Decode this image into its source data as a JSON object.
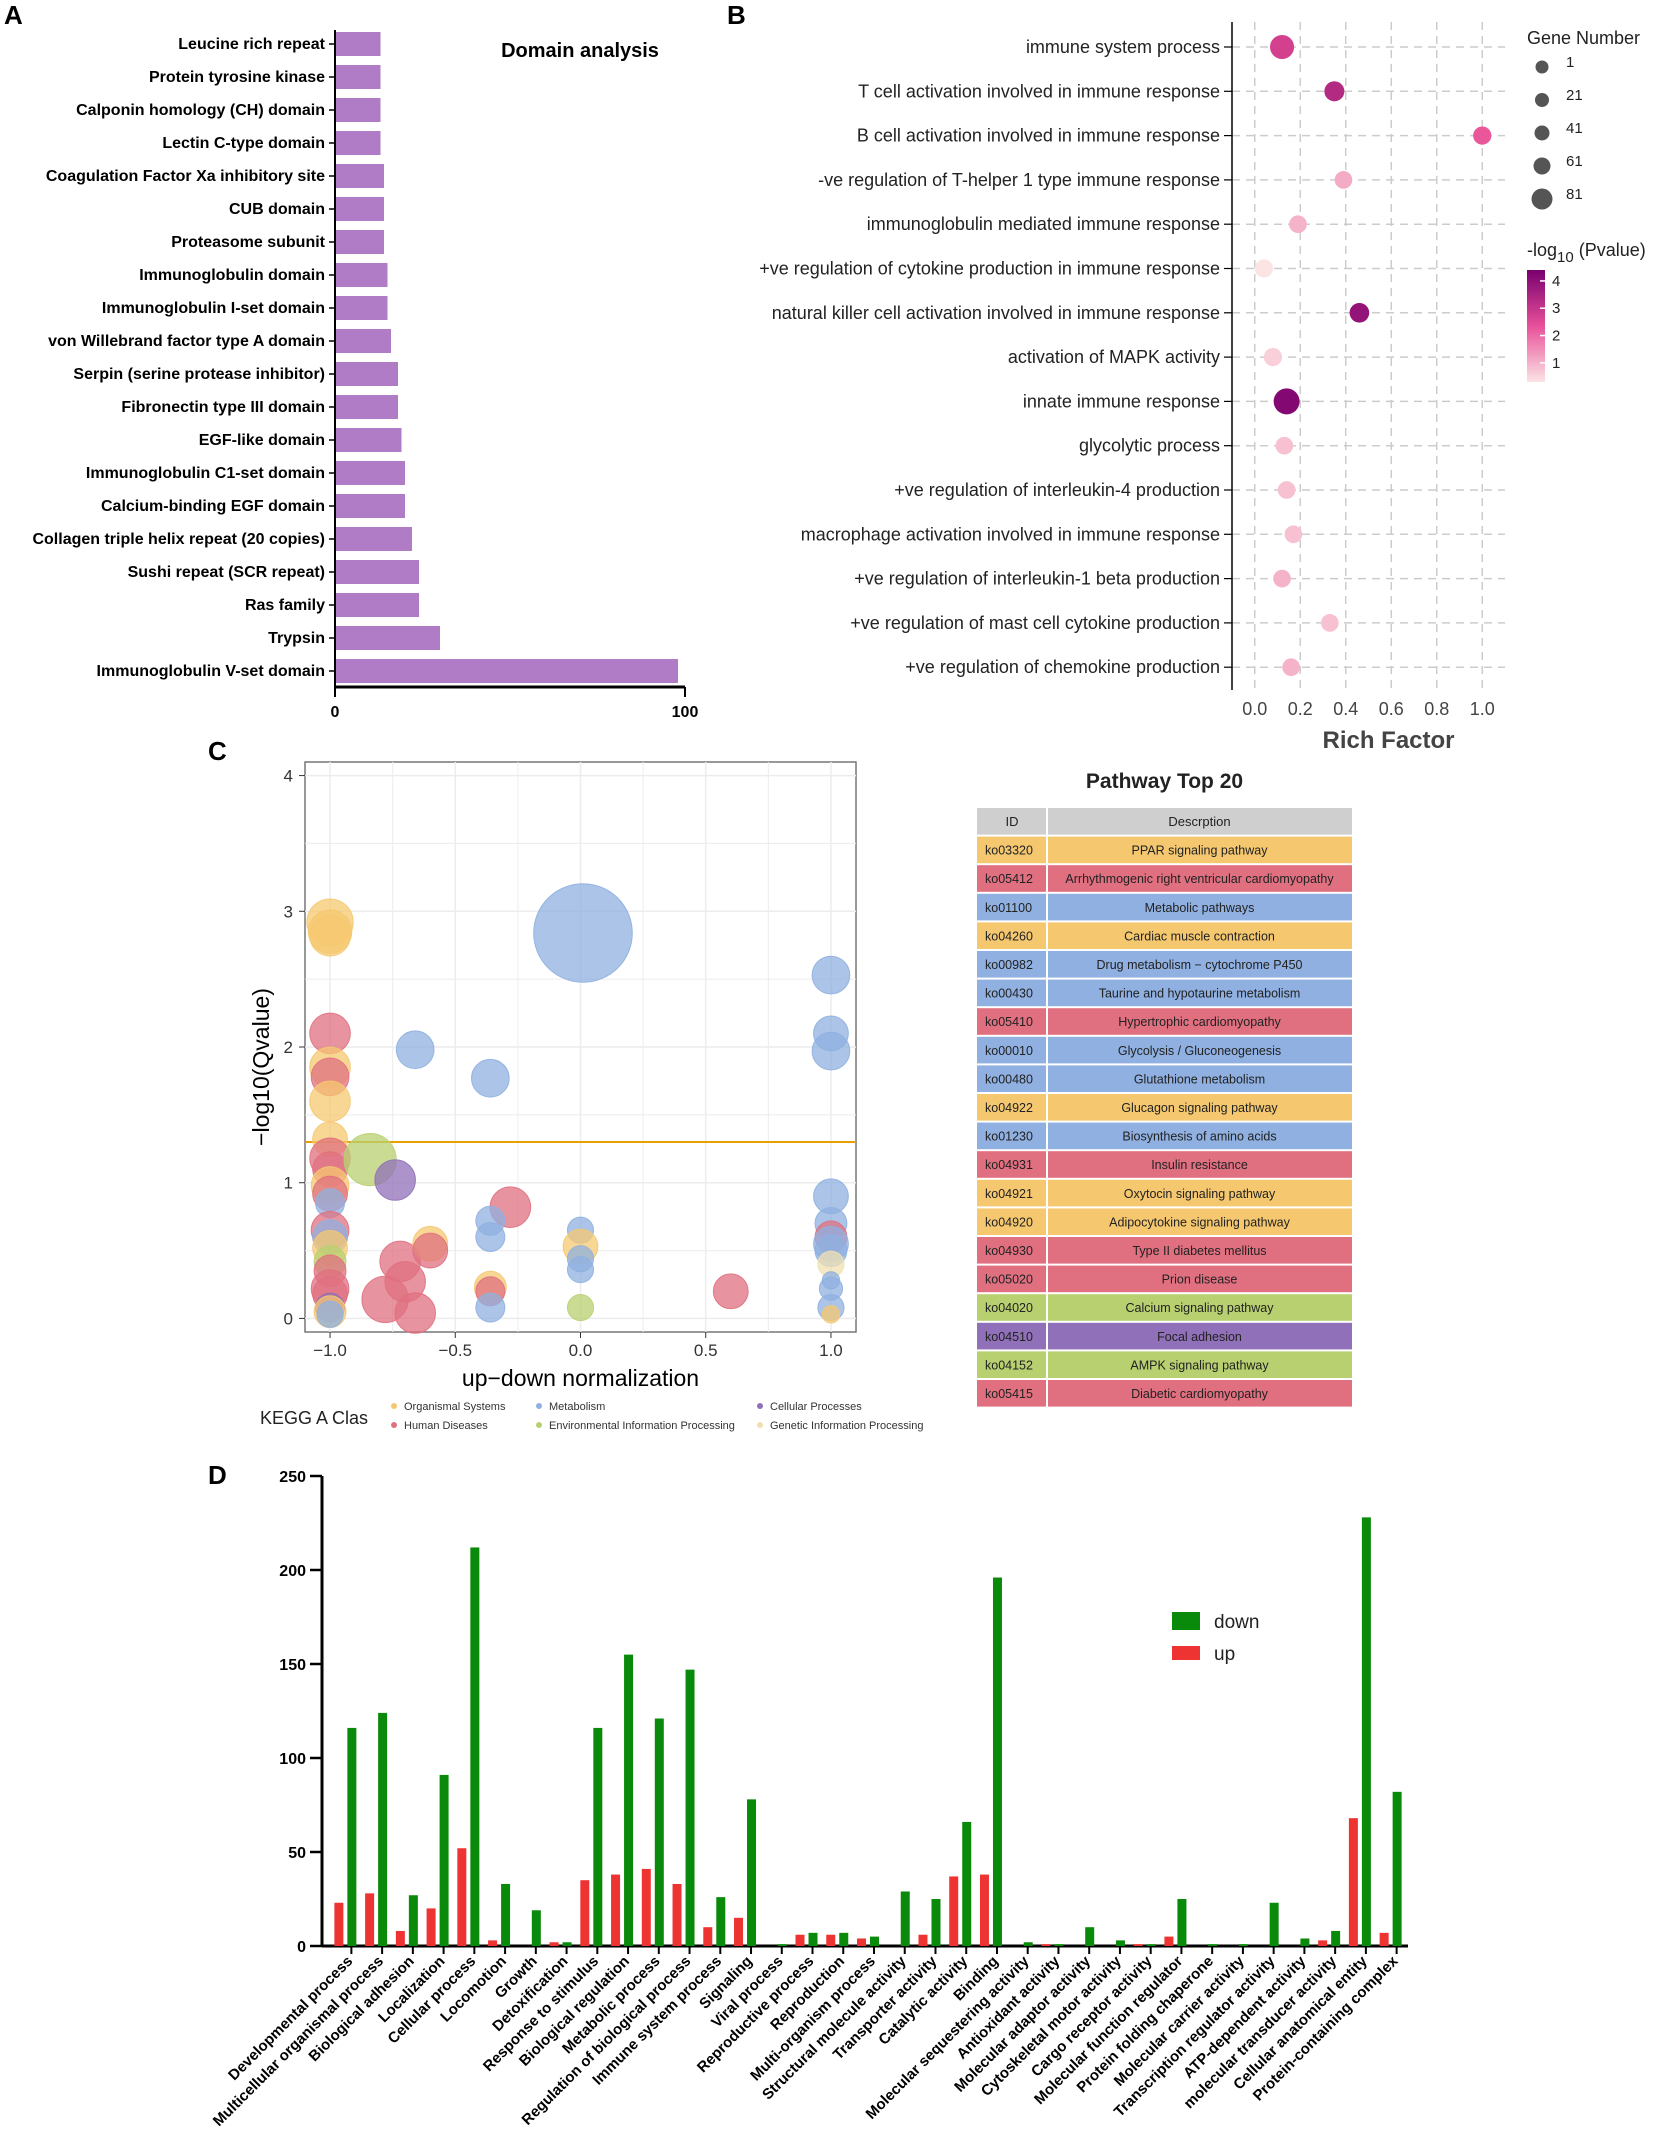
{
  "panels": {
    "a": "A",
    "b": "B",
    "c": "C",
    "d": "D"
  },
  "colors": {
    "domain_bar": "#b07cc6",
    "organismal": "#f5c870",
    "human_diseases": "#e07080",
    "metabolism": "#8fb0e0",
    "environmental": "#b8d070",
    "cellular": "#9070b8",
    "genetic": "#f0e0b0",
    "threshold": "#e8a000",
    "down": "#0a8a0a",
    "up": "#ee3333"
  },
  "chart_data": [
    {
      "id": "domain",
      "type": "bar",
      "orientation": "horizontal",
      "title": "Domain analysis",
      "xlim": [
        0,
        100
      ],
      "xticks": [
        "0",
        "100"
      ],
      "categories": [
        "Leucine rich repeat",
        "Protein tyrosine kinase",
        "Calponin homology (CH) domain",
        "Lectin C-type domain",
        "Coagulation Factor Xa inhibitory site",
        "CUB domain",
        "Proteasome subunit",
        "Immunoglobulin domain",
        "Immunoglobulin I-set domain",
        "von Willebrand factor type A domain",
        "Serpin (serine protease inhibitor)",
        "Fibronectin type III domain",
        "EGF-like domain",
        "Immunoglobulin C1-set domain",
        "Calcium-binding EGF domain",
        "Collagen triple helix repeat (20 copies)",
        "Sushi repeat (SCR repeat)",
        "Ras family",
        "Trypsin",
        "Immunoglobulin V-set domain"
      ],
      "values": [
        13,
        13,
        13,
        13,
        14,
        14,
        14,
        15,
        15,
        16,
        18,
        18,
        19,
        20,
        20,
        22,
        24,
        24,
        30,
        98
      ]
    },
    {
      "id": "enrichment",
      "type": "scatter",
      "xlabel": "Rich Factor",
      "xlim": [
        -0.1,
        1.1
      ],
      "xticks": [
        "0.0",
        "0.2",
        "0.4",
        "0.6",
        "0.8",
        "1.0"
      ],
      "categories": [
        "immune system process",
        "T cell activation involved in immune response",
        "B cell activation involved in immune response",
        "-ve regulation of T-helper 1 type immune response",
        "immunoglobulin mediated immune response",
        "+ve regulation of cytokine production in immune response",
        "natural killer cell activation involved in immune response",
        "activation of MAPK activity",
        "innate immune response",
        "glycolytic process",
        "+ve regulation of interleukin-4 production",
        "macrophage activation involved in immune response",
        "+ve regulation of interleukin-1 beta production",
        "+ve regulation of mast cell cytokine production",
        "+ve regulation of chemokine production"
      ],
      "rich_factor": [
        0.12,
        0.35,
        1.0,
        0.39,
        0.19,
        0.04,
        0.46,
        0.08,
        0.14,
        0.13,
        0.14,
        0.17,
        0.12,
        0.33,
        0.16
      ],
      "gene_number": [
        45,
        20,
        12,
        10,
        10,
        12,
        18,
        12,
        60,
        10,
        10,
        10,
        10,
        10,
        10
      ],
      "neg_log10_p": [
        3.0,
        3.6,
        2.5,
        1.3,
        1.2,
        0.5,
        4.2,
        0.8,
        4.5,
        1.0,
        1.0,
        1.0,
        1.2,
        1.0,
        1.2
      ],
      "size_legend": {
        "title": "Gene Number",
        "labels": [
          "1",
          "21",
          "41",
          "61",
          "81"
        ],
        "values": [
          1,
          21,
          41,
          61,
          81
        ]
      },
      "color_legend": {
        "title_main": "-log",
        "title_sub": "10",
        "title_end": " (Pvalue)",
        "labels": [
          "4",
          "3",
          "2",
          "1"
        ],
        "values": [
          4,
          3,
          2,
          1
        ]
      }
    },
    {
      "id": "kegg_bubble",
      "type": "scatter",
      "xlabel": "up−down normalization",
      "ylabel": "−log10(Qvalue)",
      "xlim": [
        -1.1,
        1.1
      ],
      "ylim": [
        -0.1,
        4.1
      ],
      "xticks": [
        -1.0,
        -0.5,
        0.0,
        0.5,
        1.0
      ],
      "xtick_labels": [
        "−1.0",
        "−0.5",
        "0.0",
        "0.5",
        "1.0"
      ],
      "yticks": [
        0,
        1,
        2,
        3,
        4
      ],
      "ytick_labels": [
        "0",
        "1",
        "2",
        "3",
        "4"
      ],
      "threshold": 1.3,
      "points": [
        {
          "x": -1.0,
          "y": 2.92,
          "s": 16,
          "c": "organismal"
        },
        {
          "x": -1.0,
          "y": 2.85,
          "s": 15,
          "c": "organismal"
        },
        {
          "x": -1.0,
          "y": 2.82,
          "s": 14,
          "c": "organismal"
        },
        {
          "x": -1.0,
          "y": 2.1,
          "s": 14,
          "c": "human_diseases"
        },
        {
          "x": -1.0,
          "y": 1.85,
          "s": 14,
          "c": "organismal"
        },
        {
          "x": -1.0,
          "y": 1.78,
          "s": 13,
          "c": "human_diseases"
        },
        {
          "x": -1.0,
          "y": 1.6,
          "s": 14,
          "c": "organismal"
        },
        {
          "x": -1.0,
          "y": 1.32,
          "s": 12,
          "c": "organismal"
        },
        {
          "x": -1.0,
          "y": 1.18,
          "s": 14,
          "c": "human_diseases"
        },
        {
          "x": -1.0,
          "y": 1.1,
          "s": 12,
          "c": "human_diseases"
        },
        {
          "x": -1.0,
          "y": 0.98,
          "s": 13,
          "c": "organismal"
        },
        {
          "x": -1.0,
          "y": 0.92,
          "s": 12,
          "c": "human_diseases"
        },
        {
          "x": -1.0,
          "y": 0.85,
          "s": 10,
          "c": "metabolism"
        },
        {
          "x": -1.0,
          "y": 0.65,
          "s": 13,
          "c": "human_diseases"
        },
        {
          "x": -1.0,
          "y": 0.6,
          "s": 12,
          "c": "metabolism"
        },
        {
          "x": -1.0,
          "y": 0.52,
          "s": 12,
          "c": "organismal"
        },
        {
          "x": -1.0,
          "y": 0.42,
          "s": 11,
          "c": "environmental"
        },
        {
          "x": -1.0,
          "y": 0.35,
          "s": 11,
          "c": "human_diseases"
        },
        {
          "x": -1.0,
          "y": 0.22,
          "s": 13,
          "c": "human_diseases"
        },
        {
          "x": -1.0,
          "y": 0.18,
          "s": 12,
          "c": "human_diseases"
        },
        {
          "x": -1.0,
          "y": 0.08,
          "s": 10,
          "c": "cellular"
        },
        {
          "x": -1.0,
          "y": 0.05,
          "s": 11,
          "c": "organismal"
        },
        {
          "x": -1.0,
          "y": 0.03,
          "s": 9,
          "c": "metabolism"
        },
        {
          "x": -0.84,
          "y": 1.17,
          "s": 18,
          "c": "environmental"
        },
        {
          "x": -0.74,
          "y": 1.02,
          "s": 14,
          "c": "cellular"
        },
        {
          "x": -0.66,
          "y": 1.98,
          "s": 13,
          "c": "metabolism"
        },
        {
          "x": -0.36,
          "y": 1.77,
          "s": 13,
          "c": "metabolism"
        },
        {
          "x": -0.28,
          "y": 0.82,
          "s": 14,
          "c": "human_diseases"
        },
        {
          "x": -0.72,
          "y": 0.42,
          "s": 14,
          "c": "human_diseases"
        },
        {
          "x": -0.7,
          "y": 0.27,
          "s": 14,
          "c": "human_diseases"
        },
        {
          "x": -0.78,
          "y": 0.14,
          "s": 16,
          "c": "human_diseases"
        },
        {
          "x": -0.66,
          "y": 0.04,
          "s": 14,
          "c": "human_diseases"
        },
        {
          "x": -0.6,
          "y": 0.55,
          "s": 12,
          "c": "organismal"
        },
        {
          "x": -0.6,
          "y": 0.5,
          "s": 12,
          "c": "human_diseases"
        },
        {
          "x": -0.36,
          "y": 0.72,
          "s": 10,
          "c": "metabolism"
        },
        {
          "x": -0.36,
          "y": 0.6,
          "s": 10,
          "c": "metabolism"
        },
        {
          "x": -0.36,
          "y": 0.23,
          "s": 11,
          "c": "organismal"
        },
        {
          "x": -0.36,
          "y": 0.2,
          "s": 10,
          "c": "human_diseases"
        },
        {
          "x": -0.36,
          "y": 0.08,
          "s": 10,
          "c": "metabolism"
        },
        {
          "x": 0.01,
          "y": 2.84,
          "s": 34,
          "c": "metabolism"
        },
        {
          "x": 0.0,
          "y": 0.65,
          "s": 9,
          "c": "metabolism"
        },
        {
          "x": 0.0,
          "y": 0.53,
          "s": 12,
          "c": "organismal"
        },
        {
          "x": 0.0,
          "y": 0.44,
          "s": 9,
          "c": "metabolism"
        },
        {
          "x": 0.0,
          "y": 0.36,
          "s": 9,
          "c": "metabolism"
        },
        {
          "x": 0.0,
          "y": 0.08,
          "s": 9,
          "c": "environmental"
        },
        {
          "x": 0.6,
          "y": 0.2,
          "s": 12,
          "c": "human_diseases"
        },
        {
          "x": 1.0,
          "y": 2.53,
          "s": 13,
          "c": "metabolism"
        },
        {
          "x": 1.0,
          "y": 2.1,
          "s": 12,
          "c": "metabolism"
        },
        {
          "x": 1.0,
          "y": 1.97,
          "s": 13,
          "c": "metabolism"
        },
        {
          "x": 1.0,
          "y": 0.9,
          "s": 12,
          "c": "metabolism"
        },
        {
          "x": 1.0,
          "y": 0.7,
          "s": 11,
          "c": "metabolism"
        },
        {
          "x": 1.0,
          "y": 0.6,
          "s": 11,
          "c": "human_diseases"
        },
        {
          "x": 1.0,
          "y": 0.55,
          "s": 12,
          "c": "metabolism"
        },
        {
          "x": 1.0,
          "y": 0.5,
          "s": 11,
          "c": "metabolism"
        },
        {
          "x": 1.0,
          "y": 0.4,
          "s": 9,
          "c": "genetic"
        },
        {
          "x": 1.0,
          "y": 0.28,
          "s": 6,
          "c": "metabolism"
        },
        {
          "x": 1.0,
          "y": 0.22,
          "s": 8,
          "c": "metabolism"
        },
        {
          "x": 1.0,
          "y": 0.08,
          "s": 9,
          "c": "metabolism"
        },
        {
          "x": 1.0,
          "y": 0.03,
          "s": 6,
          "c": "organismal"
        }
      ],
      "legend": {
        "title": "KEGG A Clas",
        "entries": [
          {
            "label": "Organismal Systems",
            "c": "organismal"
          },
          {
            "label": "Metabolism",
            "c": "metabolism"
          },
          {
            "label": "Cellular Processes",
            "c": "cellular"
          },
          {
            "label": "Human Diseases",
            "c": "human_diseases"
          },
          {
            "label": "Environmental Information Processing",
            "c": "environmental"
          },
          {
            "label": "Genetic Information Processing",
            "c": "genetic"
          }
        ]
      }
    },
    {
      "id": "pathway_table",
      "type": "table",
      "title": "Pathway Top 20",
      "columns": [
        "ID",
        "Descrption"
      ],
      "rows": [
        {
          "id": "ko03320",
          "desc": "PPAR signaling pathway",
          "c": "organismal"
        },
        {
          "id": "ko05412",
          "desc": "Arrhythmogenic right ventricular cardiomyopathy",
          "c": "human_diseases"
        },
        {
          "id": "ko01100",
          "desc": "Metabolic pathways",
          "c": "metabolism"
        },
        {
          "id": "ko04260",
          "desc": "Cardiac muscle contraction",
          "c": "organismal"
        },
        {
          "id": "ko00982",
          "desc": "Drug metabolism − cytochrome P450",
          "c": "metabolism"
        },
        {
          "id": "ko00430",
          "desc": "Taurine and hypotaurine metabolism",
          "c": "metabolism"
        },
        {
          "id": "ko05410",
          "desc": "Hypertrophic cardiomyopathy",
          "c": "human_diseases"
        },
        {
          "id": "ko00010",
          "desc": "Glycolysis / Gluconeogenesis",
          "c": "metabolism"
        },
        {
          "id": "ko00480",
          "desc": "Glutathione metabolism",
          "c": "metabolism"
        },
        {
          "id": "ko04922",
          "desc": "Glucagon signaling pathway",
          "c": "organismal"
        },
        {
          "id": "ko01230",
          "desc": "Biosynthesis of amino acids",
          "c": "metabolism"
        },
        {
          "id": "ko04931",
          "desc": "Insulin resistance",
          "c": "human_diseases"
        },
        {
          "id": "ko04921",
          "desc": "Oxytocin signaling pathway",
          "c": "organismal"
        },
        {
          "id": "ko04920",
          "desc": "Adipocytokine signaling pathway",
          "c": "organismal"
        },
        {
          "id": "ko04930",
          "desc": "Type II diabetes mellitus",
          "c": "human_diseases"
        },
        {
          "id": "ko05020",
          "desc": "Prion disease",
          "c": "human_diseases"
        },
        {
          "id": "ko04020",
          "desc": "Calcium signaling pathway",
          "c": "environmental"
        },
        {
          "id": "ko04510",
          "desc": "Focal adhesion",
          "c": "cellular"
        },
        {
          "id": "ko04152",
          "desc": "AMPK signaling pathway",
          "c": "environmental"
        },
        {
          "id": "ko05415",
          "desc": "Diabetic cardiomyopathy",
          "c": "human_diseases"
        }
      ]
    },
    {
      "id": "go_bar",
      "type": "bar",
      "ylim": [
        0,
        250
      ],
      "yticks": [
        "0",
        "50",
        "100",
        "150",
        "200",
        "250"
      ],
      "categories": [
        "Developmental process",
        "Multicellular organismal process",
        "Biological adhesion",
        "Localization",
        "Cellular process",
        "Locomotion",
        "Growth",
        "Detoxification",
        "Response to stimulus",
        "Biological regulation",
        "Metabolic process",
        "Regulation of biological process",
        "Immune system process",
        "Signaling",
        "Viral process",
        "Reproductive process",
        "Reproduction",
        "Multi-organism process",
        "Structural molecule activity",
        "Transporter activity",
        "Catalytic activity",
        "Binding",
        "Molecular sequestering activity",
        "Antioxidant activity",
        "Molecular adaptor activity",
        "Cytoskeletal motor activity",
        "Cargo receptor activity",
        "Molecular function regulator",
        "Protein folding chaperone",
        "Molecular carrier activity",
        "Transcription regulator activity",
        "ATP-dependent activity",
        "molecular transducer activity",
        "Cellular anatomical entity",
        "Protein-containing complex"
      ],
      "series": [
        {
          "name": "up",
          "values": [
            23,
            28,
            8,
            20,
            52,
            3,
            0,
            2,
            35,
            38,
            41,
            33,
            10,
            15,
            0,
            6,
            6,
            4,
            0,
            6,
            37,
            38,
            0,
            1,
            0,
            0,
            1,
            5,
            0,
            0,
            0,
            0,
            3,
            68,
            7
          ]
        },
        {
          "name": "down",
          "values": [
            116,
            124,
            27,
            91,
            212,
            33,
            19,
            2,
            116,
            155,
            121,
            147,
            26,
            78,
            1,
            7,
            7,
            5,
            29,
            25,
            66,
            196,
            2,
            1,
            10,
            3,
            1,
            25,
            1,
            1,
            23,
            4,
            8,
            228,
            82
          ]
        }
      ],
      "legend": [
        "down",
        "up"
      ]
    }
  ]
}
